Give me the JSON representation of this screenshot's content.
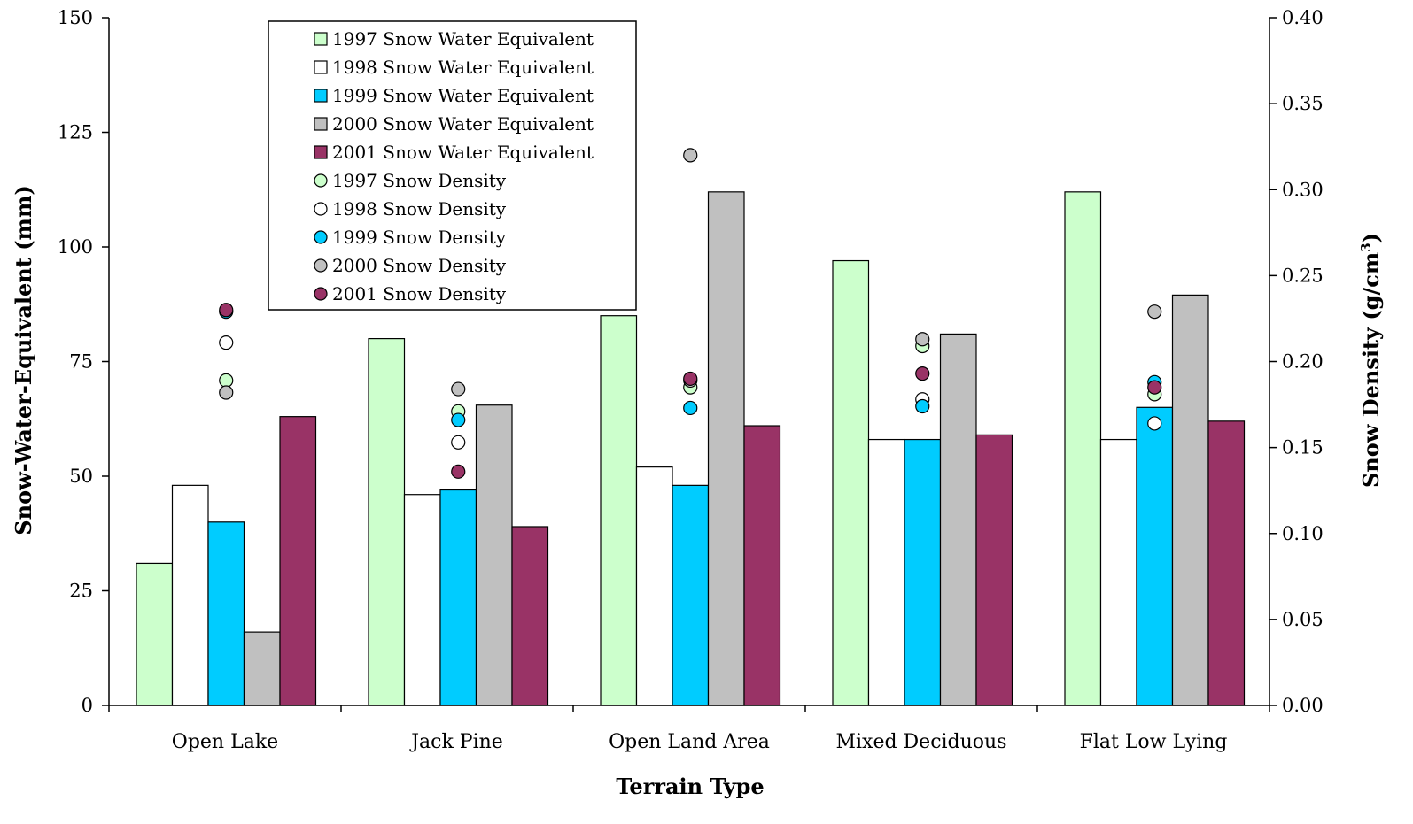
{
  "chart_data": {
    "type": "bar",
    "categories": [
      "Open Lake",
      "Jack Pine",
      "Open Land Area",
      "Mixed Deciduous",
      "Flat Low Lying"
    ],
    "xlabel": "Terrain Type",
    "ylabel": "Snow-Water-Equivalent (mm)",
    "y2label": "Snow Density (g/cm",
    "y2label_sup": "3",
    "y2label_end": ")",
    "ylim": [
      0,
      150
    ],
    "y2lim": [
      0,
      0.4
    ],
    "yticks": [
      "0",
      "25",
      "50",
      "75",
      "100",
      "125",
      "150"
    ],
    "y2ticks": [
      "0.00",
      "0.05",
      "0.10",
      "0.15",
      "0.20",
      "0.25",
      "0.30",
      "0.35",
      "0.40"
    ],
    "grid": false,
    "legend_position": "top-left",
    "bar_series": [
      {
        "name": "1997 Snow Water Equivalent",
        "color": "#ccffcc",
        "values": [
          31,
          80,
          85,
          97,
          112
        ]
      },
      {
        "name": "1998 Snow Water Equivalent",
        "color": "#ffffff",
        "values": [
          48,
          46,
          52,
          58,
          58
        ]
      },
      {
        "name": "1999 Snow Water Equivalent",
        "color": "#00ccff",
        "values": [
          40,
          47,
          48,
          58,
          65
        ]
      },
      {
        "name": "2000 Snow Water Equivalent",
        "color": "#c0c0c0",
        "values": [
          16,
          65.5,
          112,
          81,
          89.5
        ]
      },
      {
        "name": "2001 Snow Water Equivalent",
        "color": "#993366",
        "values": [
          63,
          39,
          61,
          59,
          62
        ]
      }
    ],
    "point_series": [
      {
        "name": "1997 Snow Density",
        "color": "#ccffcc",
        "values": [
          0.189,
          0.171,
          0.185,
          0.209,
          0.181
        ]
      },
      {
        "name": "1998 Snow Density",
        "color": "#ffffff",
        "values": [
          0.211,
          0.153,
          0.189,
          0.178,
          0.164
        ]
      },
      {
        "name": "1999 Snow Density",
        "color": "#00ccff",
        "values": [
          0.229,
          0.166,
          0.173,
          0.174,
          0.188
        ]
      },
      {
        "name": "2000 Snow Density",
        "color": "#c0c0c0",
        "values": [
          0.182,
          0.184,
          0.32,
          0.213,
          0.229
        ]
      },
      {
        "name": "2001 Snow Density",
        "color": "#993366",
        "values": [
          0.23,
          0.136,
          0.19,
          0.193,
          0.185
        ]
      }
    ]
  }
}
